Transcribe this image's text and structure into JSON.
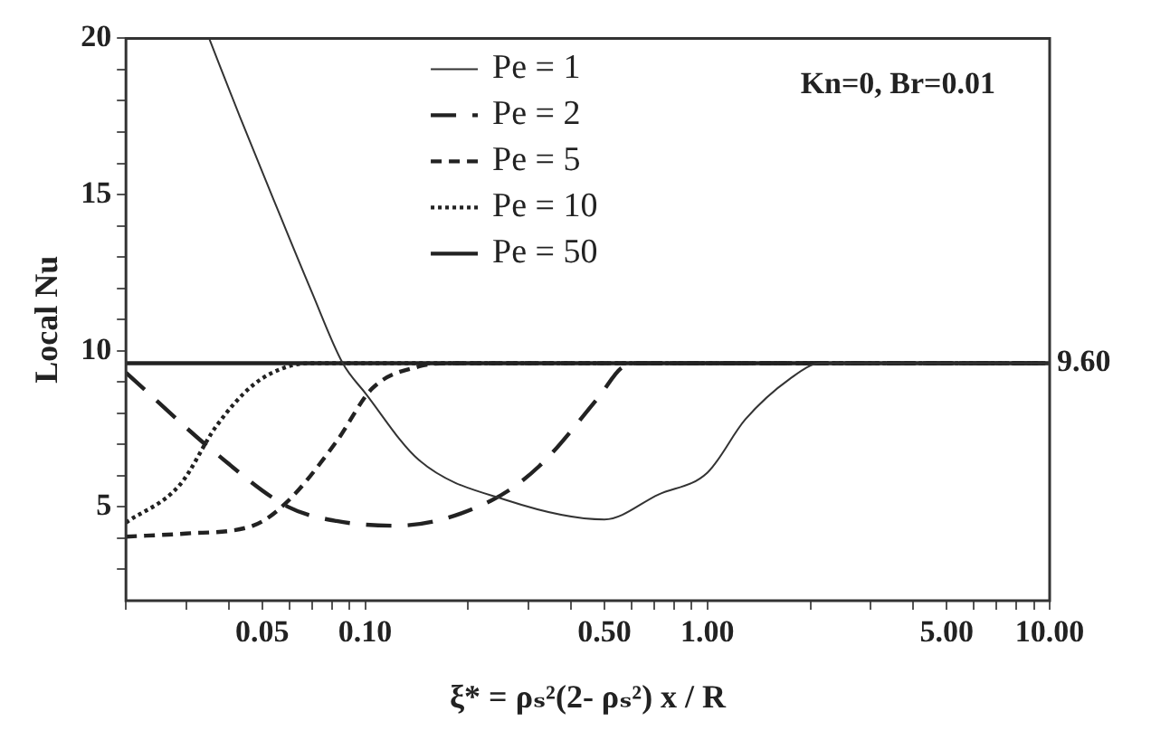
{
  "chart_data": {
    "type": "line",
    "xlabel": "ξ* = ρₛ²(2- ρₛ²) x / R",
    "ylabel": "Local Nu",
    "log": "x",
    "xlim": [
      0.02,
      10
    ],
    "ylim": [
      2,
      20
    ],
    "xticks": [
      {
        "value": 0.02,
        "label": null
      },
      {
        "value": 0.03,
        "label": null
      },
      {
        "value": 0.04,
        "label": null
      },
      {
        "value": 0.05,
        "label": "0.05"
      },
      {
        "value": 0.06,
        "label": null
      },
      {
        "value": 0.07,
        "label": null
      },
      {
        "value": 0.08,
        "label": null
      },
      {
        "value": 0.09,
        "label": null
      },
      {
        "value": 0.1,
        "label": "0.10"
      },
      {
        "value": 0.2,
        "label": null
      },
      {
        "value": 0.3,
        "label": null
      },
      {
        "value": 0.4,
        "label": null
      },
      {
        "value": 0.5,
        "label": "0.50"
      },
      {
        "value": 0.6,
        "label": null
      },
      {
        "value": 0.7,
        "label": null
      },
      {
        "value": 0.8,
        "label": null
      },
      {
        "value": 0.9,
        "label": null
      },
      {
        "value": 1,
        "label": "1.00"
      },
      {
        "value": 2,
        "label": null
      },
      {
        "value": 3,
        "label": null
      },
      {
        "value": 4,
        "label": null
      },
      {
        "value": 5,
        "label": "5.00"
      },
      {
        "value": 6,
        "label": null
      },
      {
        "value": 7,
        "label": null
      },
      {
        "value": 8,
        "label": null
      },
      {
        "value": 9,
        "label": null
      },
      {
        "value": 10,
        "label": "10.00"
      }
    ],
    "yticks": [
      {
        "value": 3,
        "label": null
      },
      {
        "value": 4,
        "label": null
      },
      5,
      {
        "value": 6,
        "label": null
      },
      {
        "value": 7,
        "label": null
      },
      {
        "value": 8,
        "label": null
      },
      {
        "value": 9,
        "label": null
      },
      10,
      {
        "value": 11,
        "label": null
      },
      {
        "value": 12,
        "label": null
      },
      {
        "value": 13,
        "label": null
      },
      {
        "value": 14,
        "label": null
      },
      15,
      {
        "value": 16,
        "label": null
      },
      {
        "value": 17,
        "label": null
      },
      {
        "value": 18,
        "label": null
      },
      {
        "value": 19,
        "label": null
      },
      20
    ],
    "grid": false,
    "legend": "top",
    "marker": "none",
    "series": [
      {
        "name": "Pe = 1",
        "color": "#333333",
        "line_style": "solid",
        "x": [
          0.035,
          0.043,
          0.0528,
          0.0697,
          0.086,
          0.1,
          0.1436,
          0.262,
          0.5,
          0.72,
          1,
          1.29,
          1.74,
          2.14,
          10
        ],
        "values": [
          20,
          17.5,
          15.1,
          11.9,
          9.6,
          8.65,
          6.5,
          5.2,
          4.6,
          5.4,
          6.1,
          7.8,
          9.1,
          9.6,
          9.6
        ]
      },
      {
        "name": "Pe = 2",
        "color": "#222222",
        "line_style": "dashed",
        "x": [
          0.02,
          0.0368,
          0.0596,
          0.0825,
          0.123,
          0.233,
          0.322,
          0.48,
          0.57,
          0.65,
          10
        ],
        "values": [
          9.3,
          6.7,
          5.0,
          4.55,
          4.4,
          5.2,
          6.3,
          8.5,
          9.5,
          9.6,
          9.6
        ]
      },
      {
        "name": "Pe = 5",
        "color": "#222222",
        "line_style": "dashed",
        "x": [
          0.02,
          0.03,
          0.047,
          0.0596,
          0.0825,
          0.105,
          0.144,
          0.18,
          10
        ],
        "values": [
          4.05,
          4.15,
          4.4,
          5.2,
          7.1,
          8.8,
          9.5,
          9.6,
          9.6
        ]
      },
      {
        "name": "Pe = 10",
        "color": "#222222",
        "line_style": "dotted",
        "x": [
          0.02,
          0.0287,
          0.0368,
          0.047,
          0.0596,
          0.07,
          10
        ],
        "values": [
          4.5,
          5.7,
          7.6,
          8.9,
          9.5,
          9.6,
          9.6
        ]
      },
      {
        "name": "Pe = 50",
        "color": "#222222",
        "line_style": "solid",
        "x": [
          0.02,
          10
        ],
        "values": [
          9.6,
          9.6
        ]
      }
    ],
    "annotations": [
      "Kn=0, Br=0.01",
      {
        "text": "9.60",
        "x": 10,
        "y": 9.6
      }
    ]
  }
}
